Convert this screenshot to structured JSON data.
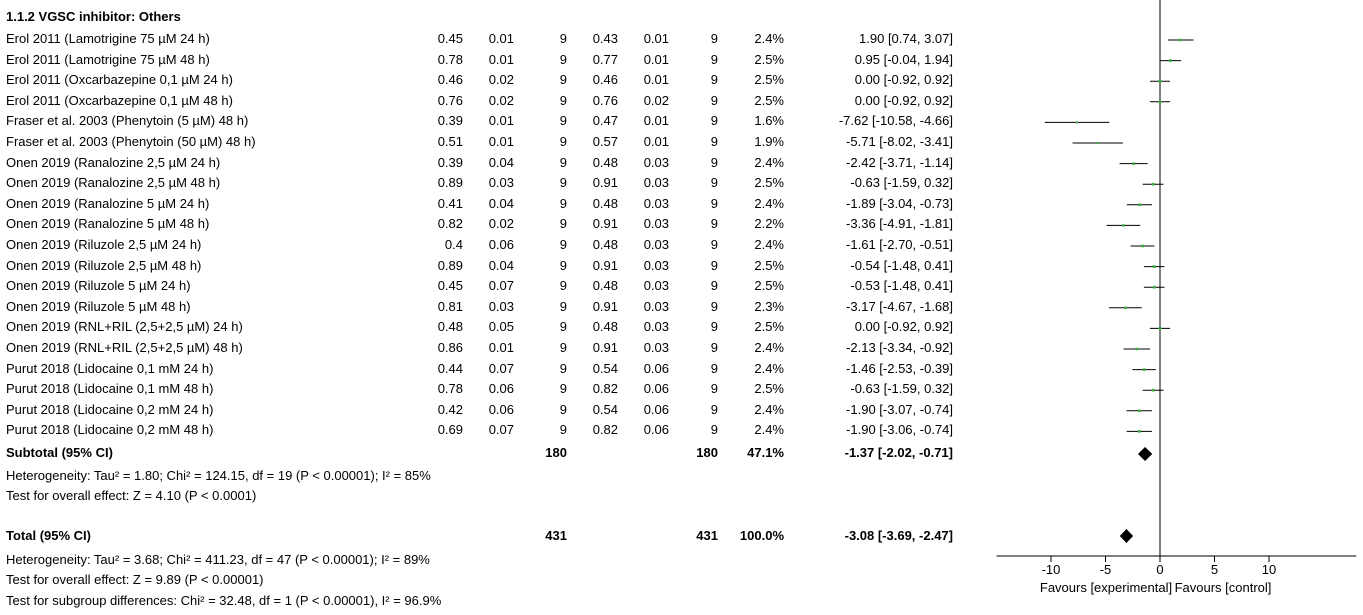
{
  "subgroup_title": "1.1.2 VGSC inhibitor: Others",
  "studies": [
    {
      "name": "Erol 2011 (Lamotrigine 75 µM 24 h)",
      "m1": "0.45",
      "sd1": "0.01",
      "n1": "9",
      "m2": "0.43",
      "sd2": "0.01",
      "n2": "9",
      "weight": "2.4%",
      "ci_text": "1.90 [0.74, 3.07]"
    },
    {
      "name": "Erol 2011 (Lamotrigine 75 µM 48 h)",
      "m1": "0.78",
      "sd1": "0.01",
      "n1": "9",
      "m2": "0.77",
      "sd2": "0.01",
      "n2": "9",
      "weight": "2.5%",
      "ci_text": "0.95 [-0.04, 1.94]"
    },
    {
      "name": "Erol 2011 (Oxcarbazepine 0,1 µM 24 h)",
      "m1": "0.46",
      "sd1": "0.02",
      "n1": "9",
      "m2": "0.46",
      "sd2": "0.01",
      "n2": "9",
      "weight": "2.5%",
      "ci_text": "0.00 [-0.92, 0.92]"
    },
    {
      "name": "Erol 2011 (Oxcarbazepine 0,1 µM 48 h)",
      "m1": "0.76",
      "sd1": "0.02",
      "n1": "9",
      "m2": "0.76",
      "sd2": "0.02",
      "n2": "9",
      "weight": "2.5%",
      "ci_text": "0.00 [-0.92, 0.92]"
    },
    {
      "name": "Fraser et al. 2003 (Phenytoin (5 µM) 48 h)",
      "m1": "0.39",
      "sd1": "0.01",
      "n1": "9",
      "m2": "0.47",
      "sd2": "0.01",
      "n2": "9",
      "weight": "1.6%",
      "ci_text": "-7.62 [-10.58, -4.66]"
    },
    {
      "name": "Fraser et al. 2003 (Phenytoin (50 µM) 48 h)",
      "m1": "0.51",
      "sd1": "0.01",
      "n1": "9",
      "m2": "0.57",
      "sd2": "0.01",
      "n2": "9",
      "weight": "1.9%",
      "ci_text": "-5.71 [-8.02, -3.41]"
    },
    {
      "name": "Onen 2019 (Ranalozine 2,5 µM 24 h)",
      "m1": "0.39",
      "sd1": "0.04",
      "n1": "9",
      "m2": "0.48",
      "sd2": "0.03",
      "n2": "9",
      "weight": "2.4%",
      "ci_text": "-2.42 [-3.71, -1.14]"
    },
    {
      "name": "Onen 2019 (Ranalozine 2,5 µM 48 h)",
      "m1": "0.89",
      "sd1": "0.03",
      "n1": "9",
      "m2": "0.91",
      "sd2": "0.03",
      "n2": "9",
      "weight": "2.5%",
      "ci_text": "-0.63 [-1.59, 0.32]"
    },
    {
      "name": "Onen 2019 (Ranalozine 5 µM 24 h)",
      "m1": "0.41",
      "sd1": "0.04",
      "n1": "9",
      "m2": "0.48",
      "sd2": "0.03",
      "n2": "9",
      "weight": "2.4%",
      "ci_text": "-1.89 [-3.04, -0.73]"
    },
    {
      "name": "Onen 2019 (Ranalozine 5 µM 48 h)",
      "m1": "0.82",
      "sd1": "0.02",
      "n1": "9",
      "m2": "0.91",
      "sd2": "0.03",
      "n2": "9",
      "weight": "2.2%",
      "ci_text": "-3.36 [-4.91, -1.81]"
    },
    {
      "name": "Onen 2019 (Riluzole 2,5 µM 24 h)",
      "m1": "0.4",
      "sd1": "0.06",
      "n1": "9",
      "m2": "0.48",
      "sd2": "0.03",
      "n2": "9",
      "weight": "2.4%",
      "ci_text": "-1.61 [-2.70, -0.51]"
    },
    {
      "name": "Onen 2019 (Riluzole 2,5 µM 48 h)",
      "m1": "0.89",
      "sd1": "0.04",
      "n1": "9",
      "m2": "0.91",
      "sd2": "0.03",
      "n2": "9",
      "weight": "2.5%",
      "ci_text": "-0.54 [-1.48, 0.41]"
    },
    {
      "name": "Onen 2019 (Riluzole 5 µM 24 h)",
      "m1": "0.45",
      "sd1": "0.07",
      "n1": "9",
      "m2": "0.48",
      "sd2": "0.03",
      "n2": "9",
      "weight": "2.5%",
      "ci_text": "-0.53 [-1.48, 0.41]"
    },
    {
      "name": "Onen 2019 (Riluzole 5 µM 48 h)",
      "m1": "0.81",
      "sd1": "0.03",
      "n1": "9",
      "m2": "0.91",
      "sd2": "0.03",
      "n2": "9",
      "weight": "2.3%",
      "ci_text": "-3.17 [-4.67, -1.68]"
    },
    {
      "name": "Onen 2019 (RNL+RIL (2,5+2,5 µM) 24 h)",
      "m1": "0.48",
      "sd1": "0.05",
      "n1": "9",
      "m2": "0.48",
      "sd2": "0.03",
      "n2": "9",
      "weight": "2.5%",
      "ci_text": "0.00 [-0.92, 0.92]"
    },
    {
      "name": "Onen 2019 (RNL+RIL (2,5+2,5 µM) 48 h)",
      "m1": "0.86",
      "sd1": "0.01",
      "n1": "9",
      "m2": "0.91",
      "sd2": "0.03",
      "n2": "9",
      "weight": "2.4%",
      "ci_text": "-2.13 [-3.34, -0.92]"
    },
    {
      "name": "Purut 2018 (Lidocaine 0,1 mM 24 h)",
      "m1": "0.44",
      "sd1": "0.07",
      "n1": "9",
      "m2": "0.54",
      "sd2": "0.06",
      "n2": "9",
      "weight": "2.4%",
      "ci_text": "-1.46 [-2.53, -0.39]"
    },
    {
      "name": "Purut 2018 (Lidocaine 0,1 mM 48 h)",
      "m1": "0.78",
      "sd1": "0.06",
      "n1": "9",
      "m2": "0.82",
      "sd2": "0.06",
      "n2": "9",
      "weight": "2.5%",
      "ci_text": "-0.63 [-1.59, 0.32]"
    },
    {
      "name": "Purut 2018 (Lidocaine 0,2 mM 24 h)",
      "m1": "0.42",
      "sd1": "0.06",
      "n1": "9",
      "m2": "0.54",
      "sd2": "0.06",
      "n2": "9",
      "weight": "2.4%",
      "ci_text": "-1.90 [-3.07, -0.74]"
    },
    {
      "name": "Purut 2018 (Lidocaine 0,2 mM 48 h)",
      "m1": "0.69",
      "sd1": "0.07",
      "n1": "9",
      "m2": "0.82",
      "sd2": "0.06",
      "n2": "9",
      "weight": "2.4%",
      "ci_text": "-1.90 [-3.06, -0.74]"
    }
  ],
  "subtotal": {
    "label": "Subtotal (95% CI)",
    "n1": "180",
    "n2": "180",
    "weight": "47.1%",
    "ci_text": "-1.37 [-2.02, -0.71]"
  },
  "subtotal_heterogeneity": "Heterogeneity: Tau² = 1.80; Chi² = 124.15, df = 19 (P < 0.00001); I² = 85%",
  "subtotal_effect": "Test for overall effect: Z = 4.10 (P < 0.0001)",
  "total": {
    "label": "Total (95% CI)",
    "n1": "431",
    "n2": "431",
    "weight": "100.0%",
    "ci_text": "-3.08 [-3.69, -2.47]"
  },
  "total_heterogeneity": "Heterogeneity: Tau² = 3.68; Chi² = 411.23, df = 47 (P < 0.00001); I² = 89%",
  "total_effect": "Test for overall effect: Z = 9.89 (P < 0.00001)",
  "subgroup_differences": "Test for subgroup differences: Chi² = 32.48, df = 1 (P < 0.00001), I² = 96.9%",
  "axis_ticks": [
    "-10",
    "-5",
    "0",
    "5",
    "10"
  ],
  "favours_left": "Favours [experimental]",
  "favours_right": "Favours [control]",
  "colors": {
    "point": "#3cb043",
    "line": "#000000",
    "text": "#000000"
  },
  "chart_data": {
    "type": "forest",
    "subgroup": "1.1.2 VGSC inhibitor: Others",
    "x_range": [
      -15,
      18
    ],
    "x_ticks": [
      -10,
      -5,
      0,
      5,
      10
    ],
    "studies": [
      {
        "est": 1.9,
        "lo": 0.74,
        "hi": 3.07,
        "weight": 2.4
      },
      {
        "est": 0.95,
        "lo": -0.04,
        "hi": 1.94,
        "weight": 2.5
      },
      {
        "est": 0.0,
        "lo": -0.92,
        "hi": 0.92,
        "weight": 2.5
      },
      {
        "est": 0.0,
        "lo": -0.92,
        "hi": 0.92,
        "weight": 2.5
      },
      {
        "est": -7.62,
        "lo": -10.58,
        "hi": -4.66,
        "weight": 1.6
      },
      {
        "est": -5.71,
        "lo": -8.02,
        "hi": -3.41,
        "weight": 1.9
      },
      {
        "est": -2.42,
        "lo": -3.71,
        "hi": -1.14,
        "weight": 2.4
      },
      {
        "est": -0.63,
        "lo": -1.59,
        "hi": 0.32,
        "weight": 2.5
      },
      {
        "est": -1.89,
        "lo": -3.04,
        "hi": -0.73,
        "weight": 2.4
      },
      {
        "est": -3.36,
        "lo": -4.91,
        "hi": -1.81,
        "weight": 2.2
      },
      {
        "est": -1.61,
        "lo": -2.7,
        "hi": -0.51,
        "weight": 2.4
      },
      {
        "est": -0.54,
        "lo": -1.48,
        "hi": 0.41,
        "weight": 2.5
      },
      {
        "est": -0.53,
        "lo": -1.48,
        "hi": 0.41,
        "weight": 2.5
      },
      {
        "est": -3.17,
        "lo": -4.67,
        "hi": -1.68,
        "weight": 2.3
      },
      {
        "est": 0.0,
        "lo": -0.92,
        "hi": 0.92,
        "weight": 2.5
      },
      {
        "est": -2.13,
        "lo": -3.34,
        "hi": -0.92,
        "weight": 2.4
      },
      {
        "est": -1.46,
        "lo": -2.53,
        "hi": -0.39,
        "weight": 2.4
      },
      {
        "est": -0.63,
        "lo": -1.59,
        "hi": 0.32,
        "weight": 2.5
      },
      {
        "est": -1.9,
        "lo": -3.07,
        "hi": -0.74,
        "weight": 2.4
      },
      {
        "est": -1.9,
        "lo": -3.06,
        "hi": -0.74,
        "weight": 2.4
      }
    ],
    "subtotal": {
      "est": -1.37,
      "lo": -2.02,
      "hi": -0.71
    },
    "total": {
      "est": -3.08,
      "lo": -3.69,
      "hi": -2.47
    }
  }
}
